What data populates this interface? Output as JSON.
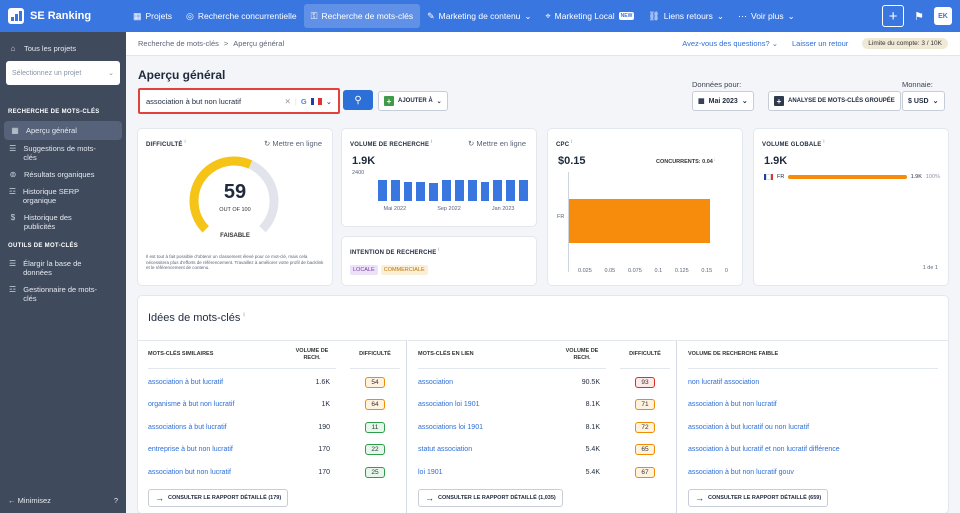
{
  "app": {
    "name": "SE Ranking"
  },
  "nav": [
    {
      "label": "Projets",
      "icon": "grid-icon"
    },
    {
      "label": "Recherche concurrentielle",
      "icon": "target-icon"
    },
    {
      "label": "Recherche de mots-clés",
      "icon": "key-icon",
      "active": true
    },
    {
      "label": "Marketing de contenu",
      "icon": "edit-icon",
      "chevron": "⌄"
    },
    {
      "label": "Marketing Local",
      "icon": "pin-icon",
      "badge": "NEW"
    },
    {
      "label": "Liens retours",
      "icon": "link-icon",
      "chevron": "⌄"
    },
    {
      "label": "Voir plus",
      "icon": "more-icon",
      "chevron": "⌄"
    }
  ],
  "topright": {
    "avatar": "EK"
  },
  "sidebar": {
    "all_projects": "Tous les projets",
    "select_placeholder": "Sélectionnez un projet",
    "section1": "RECHERCHE DE MOTS-CLÉS",
    "items1": [
      {
        "label": "Aperçu général",
        "active": true
      },
      {
        "label": "Suggestions de mots-clés"
      },
      {
        "label": "Résultats organiques"
      },
      {
        "label": "Historique SERP organique"
      },
      {
        "label": "Historique des publicités"
      }
    ],
    "section2": "OUTILS DE MOT-CLÉS",
    "items2": [
      {
        "label": "Élargir la base de données"
      },
      {
        "label": "Gestionnaire de mots-clés"
      }
    ],
    "minimize": "Minimisez"
  },
  "breadcrumb": {
    "root": "Recherche de mots-clés",
    "sep": ">",
    "current": "Aperçu général",
    "help": "Avez-vous des questions?",
    "feedback": "Laisser un retour",
    "limit": "Limite du compte: 3 / 10K"
  },
  "header": {
    "title": "Aperçu général",
    "search_value": "association à but non lucratif",
    "add_label": "AJOUTER À",
    "data_label": "Données pour:",
    "date": "Mai 2023",
    "group_label": "ANALYSE DE MOTS-CLÉS GROUPÉE",
    "currency_label": "Monnaie:",
    "currency": "$ USD"
  },
  "difficulty": {
    "title": "DIFFICULTÉ",
    "link": "Mettre en ligne",
    "value": "59",
    "of": "OUT OF 100",
    "level": "FAISABLE",
    "percent": 59,
    "desc": "Il est tout à fait possible d'obtenir un classement élevé pour ce mot-clé, mais cela nécessitera plus d'efforts de référencement. Travaillez à améliorer votre profil de backlink et le référencement de contenu."
  },
  "volume": {
    "title": "VOLUME DE RECHERCHE",
    "link": "Mettre en ligne",
    "value": "1.9K",
    "ymax": "2400",
    "xlabels": [
      "Mai 2022",
      "Sep 2022",
      "Jan 2023"
    ],
    "bars": [
      1900,
      1900,
      1800,
      1800,
      1700,
      1900,
      1900,
      1900,
      1800,
      1900,
      1900,
      1900
    ]
  },
  "intent": {
    "title": "INTENTION DE RECHERCHE",
    "tags": [
      "LOCALE",
      "COMMERCIALE"
    ]
  },
  "cpc": {
    "title": "CPC",
    "value": "$0.15",
    "comp_label": "CONCURRENTS:",
    "comp_value": "0.04",
    "country": "FR",
    "xticks": [
      "0.025",
      "0.05",
      "0.075",
      "0.1",
      "0.125",
      "0.15",
      "0"
    ],
    "chart_data": {
      "type": "bar",
      "categories": [
        "FR"
      ],
      "values": [
        0.15
      ]
    }
  },
  "global": {
    "title": "VOLUME GLOBALE",
    "value": "1.9K",
    "country": "FR",
    "country_value": "1.9K",
    "percent": "100%",
    "pager": "1 de 1"
  },
  "ideas": {
    "title": "Idées de mots-clés",
    "similar": {
      "headers": [
        "MOTS-CLÉS SIMILAIRES",
        "VOLUME DE RECH.",
        "DIFFICULTÉ"
      ],
      "rows": [
        [
          "association à but lucratif",
          "1.6K",
          "54"
        ],
        [
          "organisme à but non lucratif",
          "1K",
          "64"
        ],
        [
          "associations à but lucratif",
          "190",
          "11"
        ],
        [
          "entreprise à but non lucratif",
          "170",
          "22"
        ],
        [
          "association but non lucratif",
          "170",
          "25"
        ]
      ],
      "button": "CONSULTER LE RAPPORT DÉTAILLÉ (179)"
    },
    "related": {
      "headers": [
        "MOTS-CLÉS EN LIEN",
        "VOLUME DE RECH.",
        "DIFFICULTÉ"
      ],
      "rows": [
        [
          "association",
          "90.5K",
          "93"
        ],
        [
          "association loi 1901",
          "8.1K",
          "71"
        ],
        [
          "associations loi 1901",
          "8.1K",
          "72"
        ],
        [
          "statut association",
          "5.4K",
          "65"
        ],
        [
          "loi 1901",
          "5.4K",
          "67"
        ]
      ],
      "button": "CONSULTER LE RAPPORT DÉTAILLÉ (1,035)"
    },
    "low": {
      "headers": [
        "VOLUME DE RECHERCHE FAIBLE"
      ],
      "rows": [
        [
          "non lucratif association"
        ],
        [
          "association à but non lucratif"
        ],
        [
          "association à but lucratif ou non lucratif"
        ],
        [
          "association à but lucratif et non lucratif différence"
        ],
        [
          "association à but non lucratif gouv"
        ]
      ],
      "button": "CONSULTER LE RAPPORT DÉTAILLÉ (659)"
    }
  },
  "colors": {
    "brand": "#3a76e0",
    "accent": "#2c6fd6",
    "orange": "#f68b0c",
    "gauge": "#f6c417",
    "green": "#3f9a4a"
  }
}
